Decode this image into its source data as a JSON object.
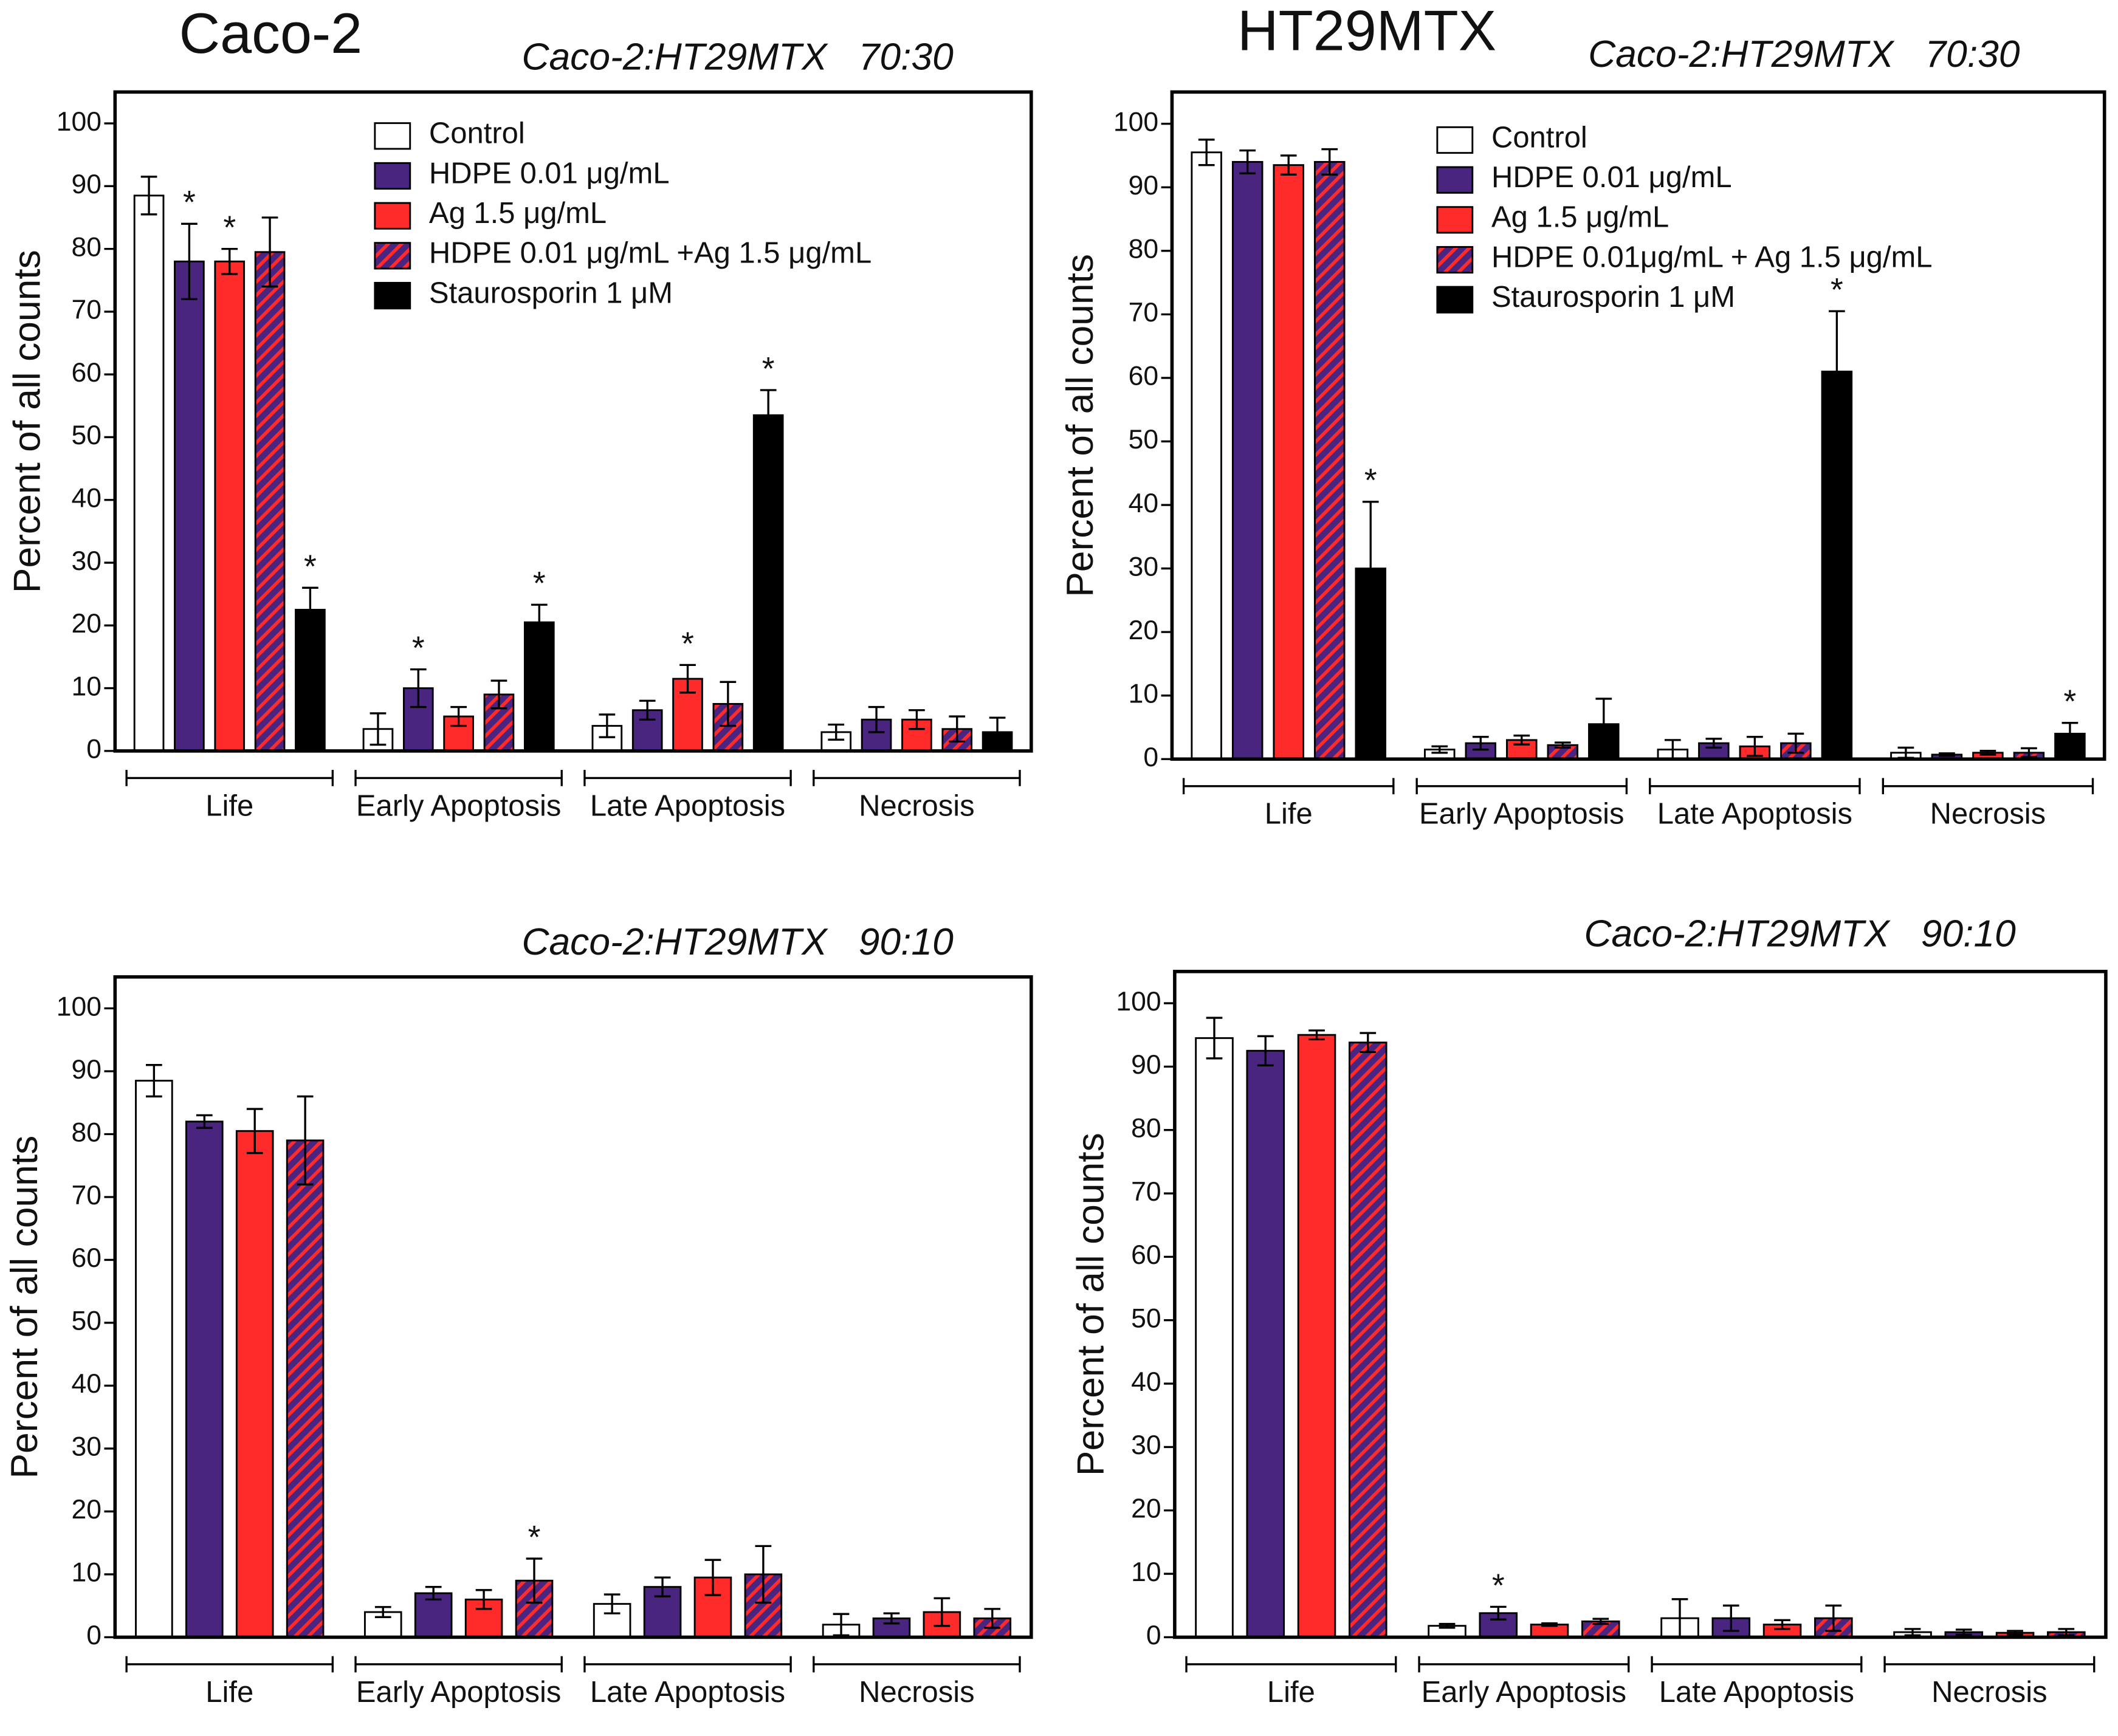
{
  "chart_data": [
    {
      "type": "bar",
      "title": "Caco-2",
      "subtitle": "Caco-2:HT29MTX   70:30",
      "y_label": "Percent of all counts",
      "categories": [
        "Life",
        "Early Apoptosis",
        "Late Apoptosis",
        "Necrosis"
      ],
      "ylim": [
        0,
        105
      ],
      "yticks": [
        0,
        10,
        20,
        30,
        40,
        50,
        60,
        70,
        80,
        90,
        100
      ],
      "legend": "top-right",
      "series": [
        {
          "name": "Control",
          "color": "#ffffff",
          "values": [
            88.5,
            3.5,
            4,
            3
          ],
          "errors": [
            3,
            2.5,
            1.8,
            1.2
          ],
          "annotations": [
            null,
            null,
            null,
            null
          ]
        },
        {
          "name": "HDPE 0.01 μg/mL",
          "color": "#4a2580",
          "values": [
            78,
            10,
            6.5,
            5
          ],
          "errors": [
            6,
            3,
            1.5,
            2
          ],
          "annotations": [
            "*",
            "*",
            null,
            null
          ]
        },
        {
          "name": "Ag 1.5 μg/mL",
          "color": "#ff2a2a",
          "values": [
            78,
            5.5,
            11.5,
            5
          ],
          "errors": [
            2,
            1.5,
            2.2,
            1.5
          ],
          "annotations": [
            "*",
            null,
            "*",
            null
          ]
        },
        {
          "name": "HDPE 0.01 μg/mL +Ag 1.5 μg/mL",
          "color": "#4a2580",
          "pattern": "hatch",
          "values": [
            79.5,
            9,
            7.5,
            3.5
          ],
          "errors": [
            5.5,
            2.2,
            3.5,
            2
          ],
          "annotations": [
            null,
            null,
            null,
            null
          ]
        },
        {
          "name": "Staurosporin 1 μM",
          "color": "#000000",
          "values": [
            22.5,
            20.5,
            53.5,
            3
          ],
          "errors": [
            3.5,
            2.8,
            4,
            2.3
          ],
          "annotations": [
            "*",
            "*",
            "*",
            null
          ]
        }
      ]
    },
    {
      "type": "bar",
      "title": "HT29MTX",
      "subtitle": "Caco-2:HT29MTX   70:30",
      "y_label": "Percent of all counts",
      "categories": [
        "Life",
        "Early Apoptosis",
        "Late Apoptosis",
        "Necrosis"
      ],
      "ylim": [
        0,
        105
      ],
      "yticks": [
        0,
        10,
        20,
        30,
        40,
        50,
        60,
        70,
        80,
        90,
        100
      ],
      "legend": "top-right",
      "series": [
        {
          "name": "Control",
          "color": "#ffffff",
          "values": [
            95.5,
            1.5,
            1.5,
            1
          ],
          "errors": [
            2,
            0.5,
            1.5,
            0.8
          ],
          "annotations": [
            null,
            null,
            null,
            null
          ]
        },
        {
          "name": "HDPE 0.01 μg/mL",
          "color": "#4a2580",
          "values": [
            94,
            2.5,
            2.5,
            0.7
          ],
          "errors": [
            1.8,
            1,
            0.7,
            0.2
          ],
          "annotations": [
            null,
            null,
            null,
            null
          ]
        },
        {
          "name": "Ag 1.5 μg/mL",
          "color": "#ff2a2a",
          "values": [
            93.5,
            3,
            2,
            1
          ],
          "errors": [
            1.5,
            0.7,
            1.5,
            0.3
          ],
          "annotations": [
            null,
            null,
            null,
            null
          ]
        },
        {
          "name": "HDPE 0.01μg/mL + Ag 1.5 μg/mL",
          "color": "#4a2580",
          "pattern": "hatch",
          "values": [
            94,
            2.2,
            2.5,
            1
          ],
          "errors": [
            2,
            0.4,
            1.5,
            0.7
          ],
          "annotations": [
            null,
            null,
            null,
            null
          ]
        },
        {
          "name": "Staurosporin 1 μM",
          "color": "#000000",
          "values": [
            30,
            5.5,
            61,
            4
          ],
          "errors": [
            10.5,
            4,
            9.5,
            1.7
          ],
          "annotations": [
            "*",
            null,
            "*",
            "*"
          ]
        }
      ]
    },
    {
      "type": "bar",
      "subtitle": "Caco-2:HT29MTX   90:10",
      "y_label": "Percent of all counts",
      "categories": [
        "Life",
        "Early Apoptosis",
        "Late Apoptosis",
        "Necrosis"
      ],
      "ylim": [
        0,
        105
      ],
      "yticks": [
        0,
        10,
        20,
        30,
        40,
        50,
        60,
        70,
        80,
        90,
        100
      ],
      "series": [
        {
          "color": "#ffffff",
          "values": [
            88.5,
            4,
            5.3,
            2
          ],
          "errors": [
            2.5,
            0.8,
            1.5,
            1.7
          ],
          "annotations": [
            null,
            null,
            null,
            null
          ]
        },
        {
          "color": "#4a2580",
          "values": [
            82,
            7,
            8,
            3
          ],
          "errors": [
            1,
            1,
            1.5,
            0.8
          ],
          "annotations": [
            null,
            null,
            null,
            null
          ]
        },
        {
          "color": "#ff2a2a",
          "values": [
            80.5,
            6,
            9.5,
            4
          ],
          "errors": [
            3.5,
            1.5,
            2.8,
            2.2
          ],
          "annotations": [
            null,
            null,
            null,
            null
          ]
        },
        {
          "color": "#4a2580",
          "pattern": "hatch",
          "values": [
            79,
            9,
            10,
            3
          ],
          "errors": [
            7,
            3.5,
            4.5,
            1.5
          ],
          "annotations": [
            null,
            "*",
            null,
            null
          ]
        }
      ]
    },
    {
      "type": "bar",
      "subtitle": "Caco-2:HT29MTX   90:10",
      "y_label": "Percent of all counts",
      "categories": [
        "Life",
        "Early Apoptosis",
        "Late Apoptosis",
        "Necrosis"
      ],
      "ylim": [
        0,
        105
      ],
      "yticks": [
        0,
        10,
        20,
        30,
        40,
        50,
        60,
        70,
        80,
        90,
        100
      ],
      "series": [
        {
          "color": "#ffffff",
          "values": [
            94.5,
            1.8,
            3,
            0.8
          ],
          "errors": [
            3.2,
            0.3,
            3,
            0.5
          ],
          "annotations": [
            null,
            null,
            null,
            null
          ]
        },
        {
          "color": "#4a2580",
          "values": [
            92.5,
            3.8,
            3,
            0.8
          ],
          "errors": [
            2.3,
            1,
            2,
            0.4
          ],
          "annotations": [
            null,
            "*",
            null,
            null
          ]
        },
        {
          "color": "#ff2a2a",
          "values": [
            95,
            2,
            2,
            0.7
          ],
          "errors": [
            0.7,
            0.2,
            0.7,
            0.3
          ],
          "annotations": [
            null,
            null,
            null,
            null
          ]
        },
        {
          "color": "#4a2580",
          "pattern": "hatch",
          "values": [
            93.8,
            2.5,
            3,
            0.8
          ],
          "errors": [
            1.5,
            0.4,
            2,
            0.5
          ],
          "annotations": [
            null,
            null,
            null,
            null
          ]
        }
      ]
    }
  ]
}
